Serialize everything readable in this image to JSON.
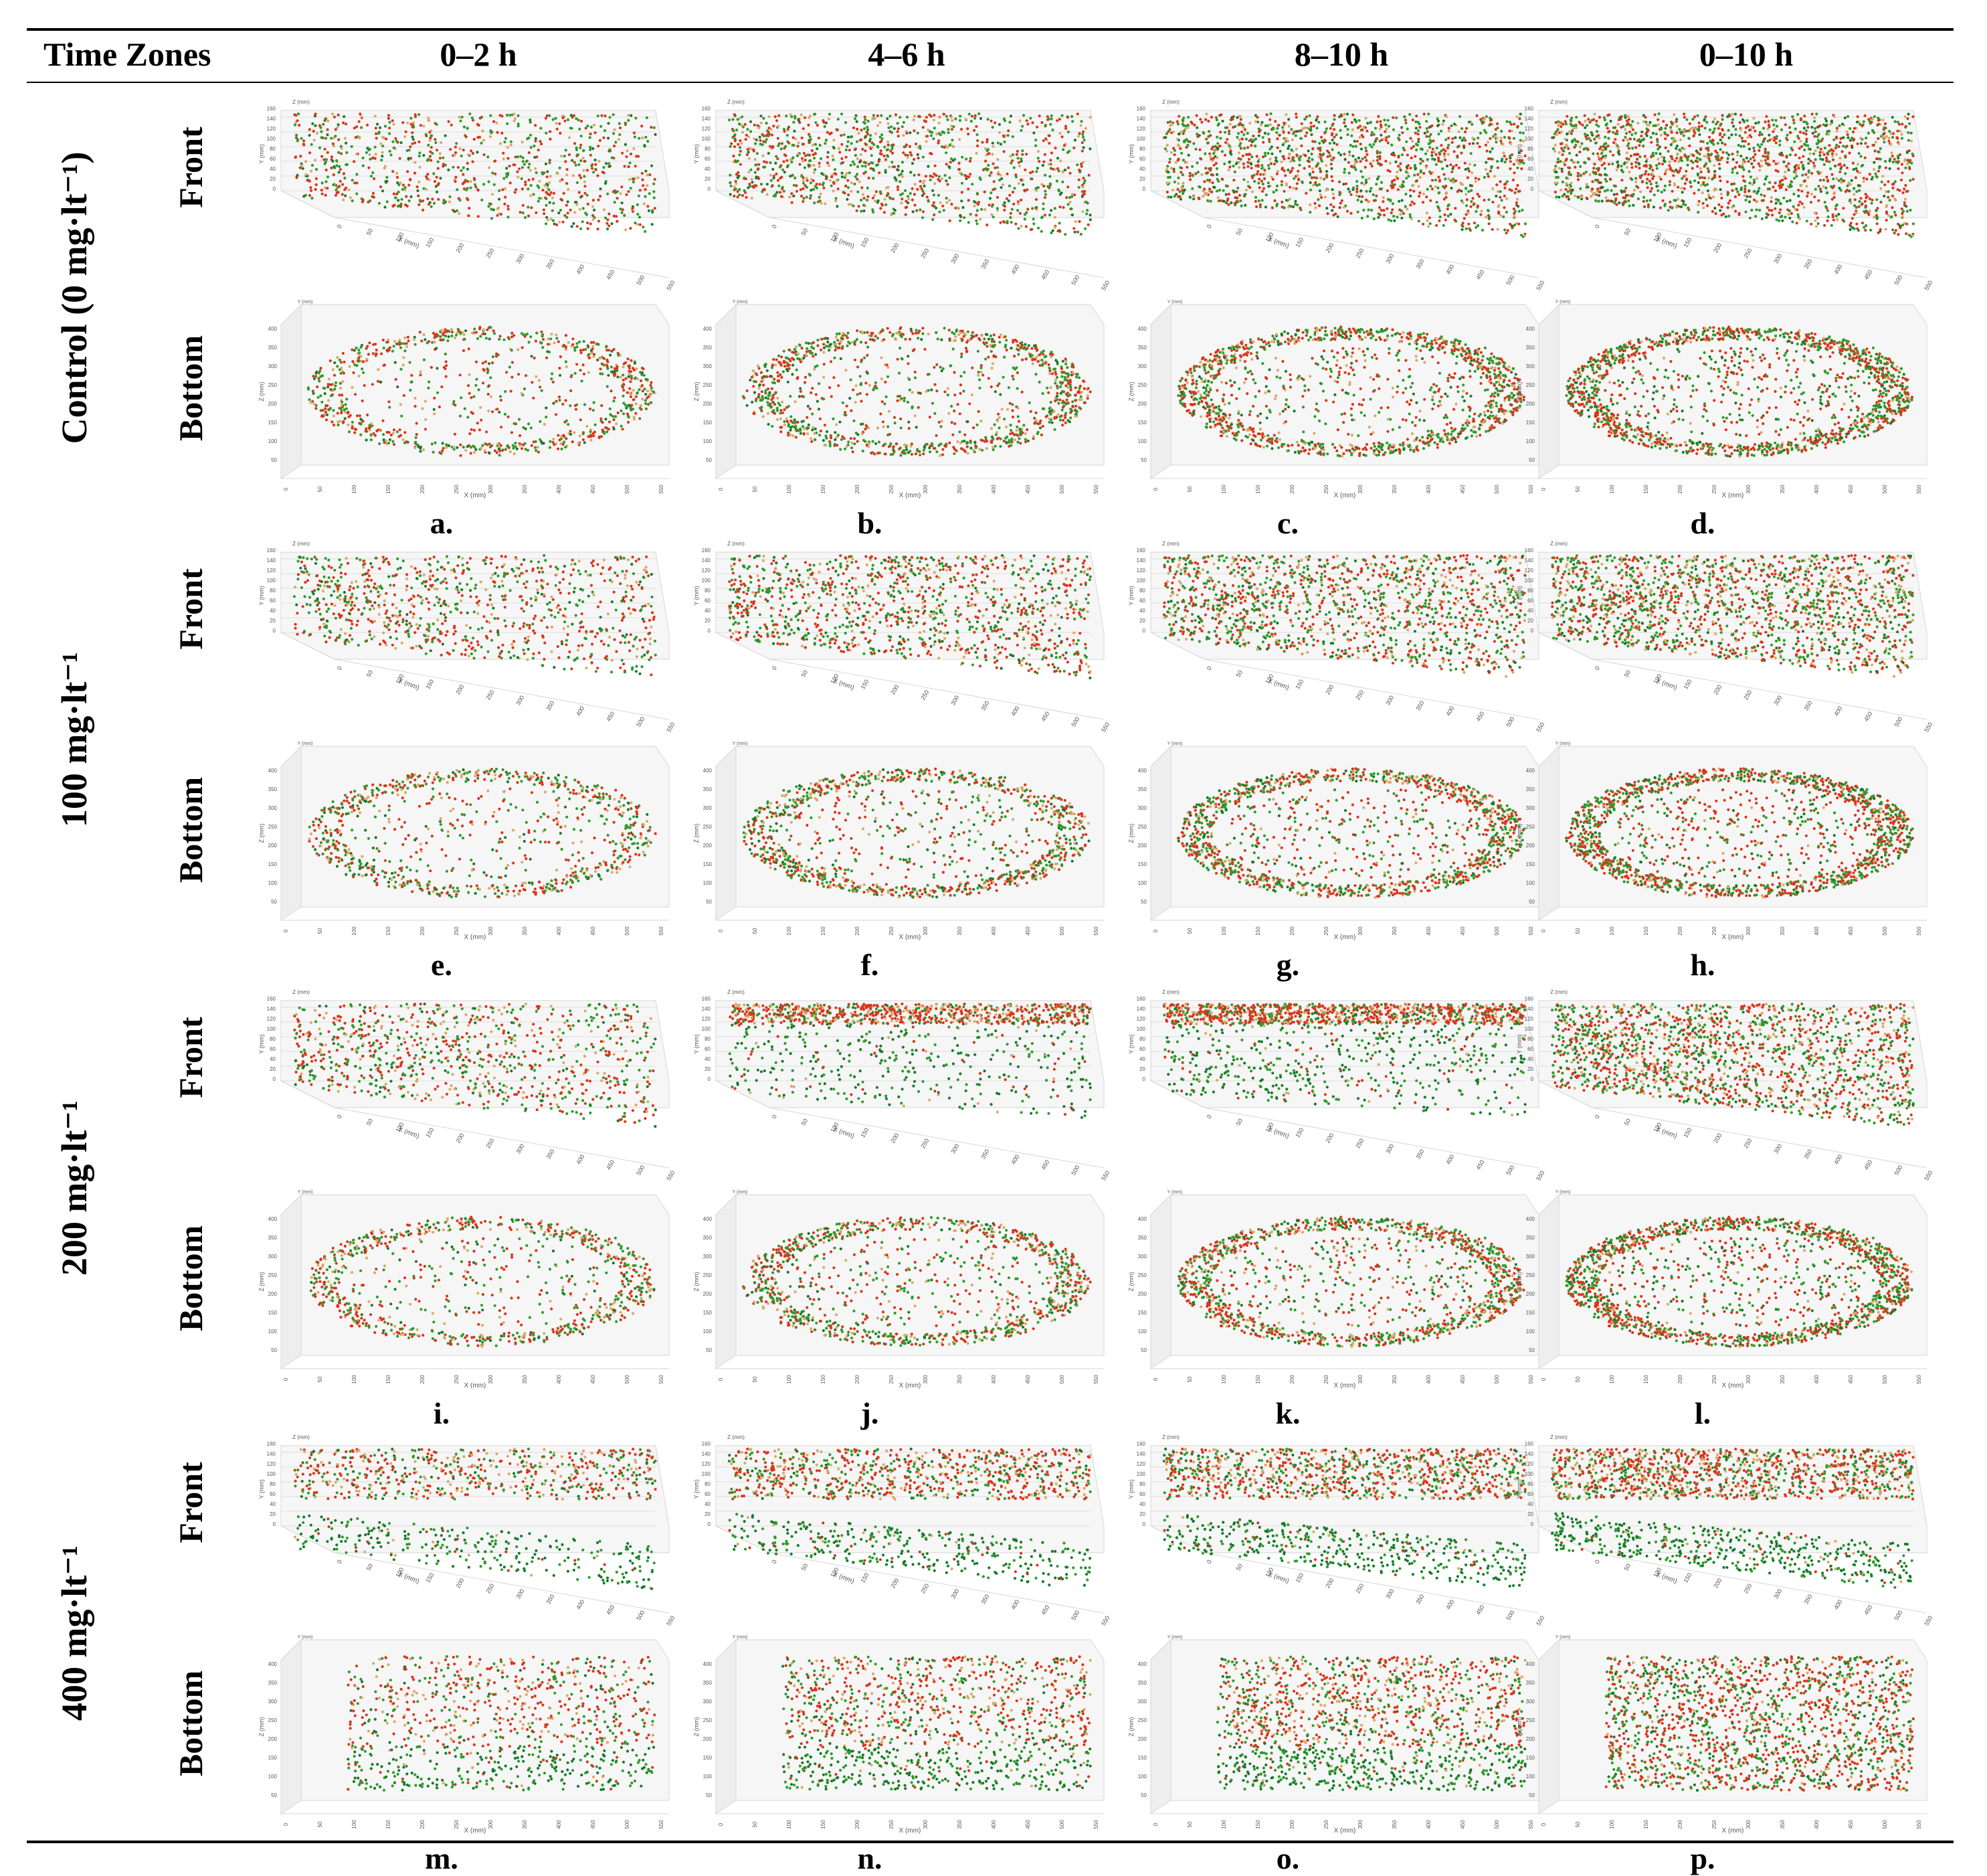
{
  "header": {
    "time_zones_label": "Time Zones",
    "columns": [
      "0–2 h",
      "4–6 h",
      "8–10 h",
      "0–10 h"
    ]
  },
  "groups": [
    {
      "label": "Control (0 mg·lt⁻¹)",
      "panels": [
        "a.",
        "b.",
        "c.",
        "d."
      ]
    },
    {
      "label": "100 mg·lt⁻¹",
      "panels": [
        "e.",
        "f.",
        "g.",
        "h."
      ]
    },
    {
      "label": "200 mg·lt⁻¹",
      "panels": [
        "i.",
        "j.",
        "k.",
        "l."
      ]
    },
    {
      "label": "400 mg·lt⁻¹",
      "panels": [
        "m.",
        "n.",
        "o.",
        "p."
      ]
    }
  ],
  "views": {
    "front": "Front",
    "bottom": "Bottom"
  },
  "axes": {
    "front": {
      "x_title": "X (mm)",
      "y_title": "Y (mm)",
      "z_title": "Z (mm)",
      "x_ticks": [
        "0",
        "50",
        "100",
        "150",
        "200",
        "250",
        "300",
        "350",
        "400",
        "450",
        "500",
        "550"
      ],
      "y_ticks": [
        "0",
        "20",
        "40",
        "60",
        "80",
        "100",
        "120",
        "140",
        "160"
      ]
    },
    "bottom": {
      "x_title": "X (mm)",
      "z_title": "Z (mm)",
      "y_title": "Y (mm)",
      "x_ticks": [
        "0",
        "50",
        "100",
        "150",
        "200",
        "250",
        "300",
        "350",
        "400",
        "450",
        "500",
        "550"
      ],
      "z_ticks": [
        "50",
        "100",
        "150",
        "200",
        "250",
        "300",
        "350",
        "400"
      ]
    }
  },
  "colors": {
    "red": "#d8361c",
    "green": "#2f9a2c",
    "dark_green": "#167a2a",
    "light": "#dba86a",
    "grid": "#d6d6d6",
    "axis_text": "#555555"
  }
}
